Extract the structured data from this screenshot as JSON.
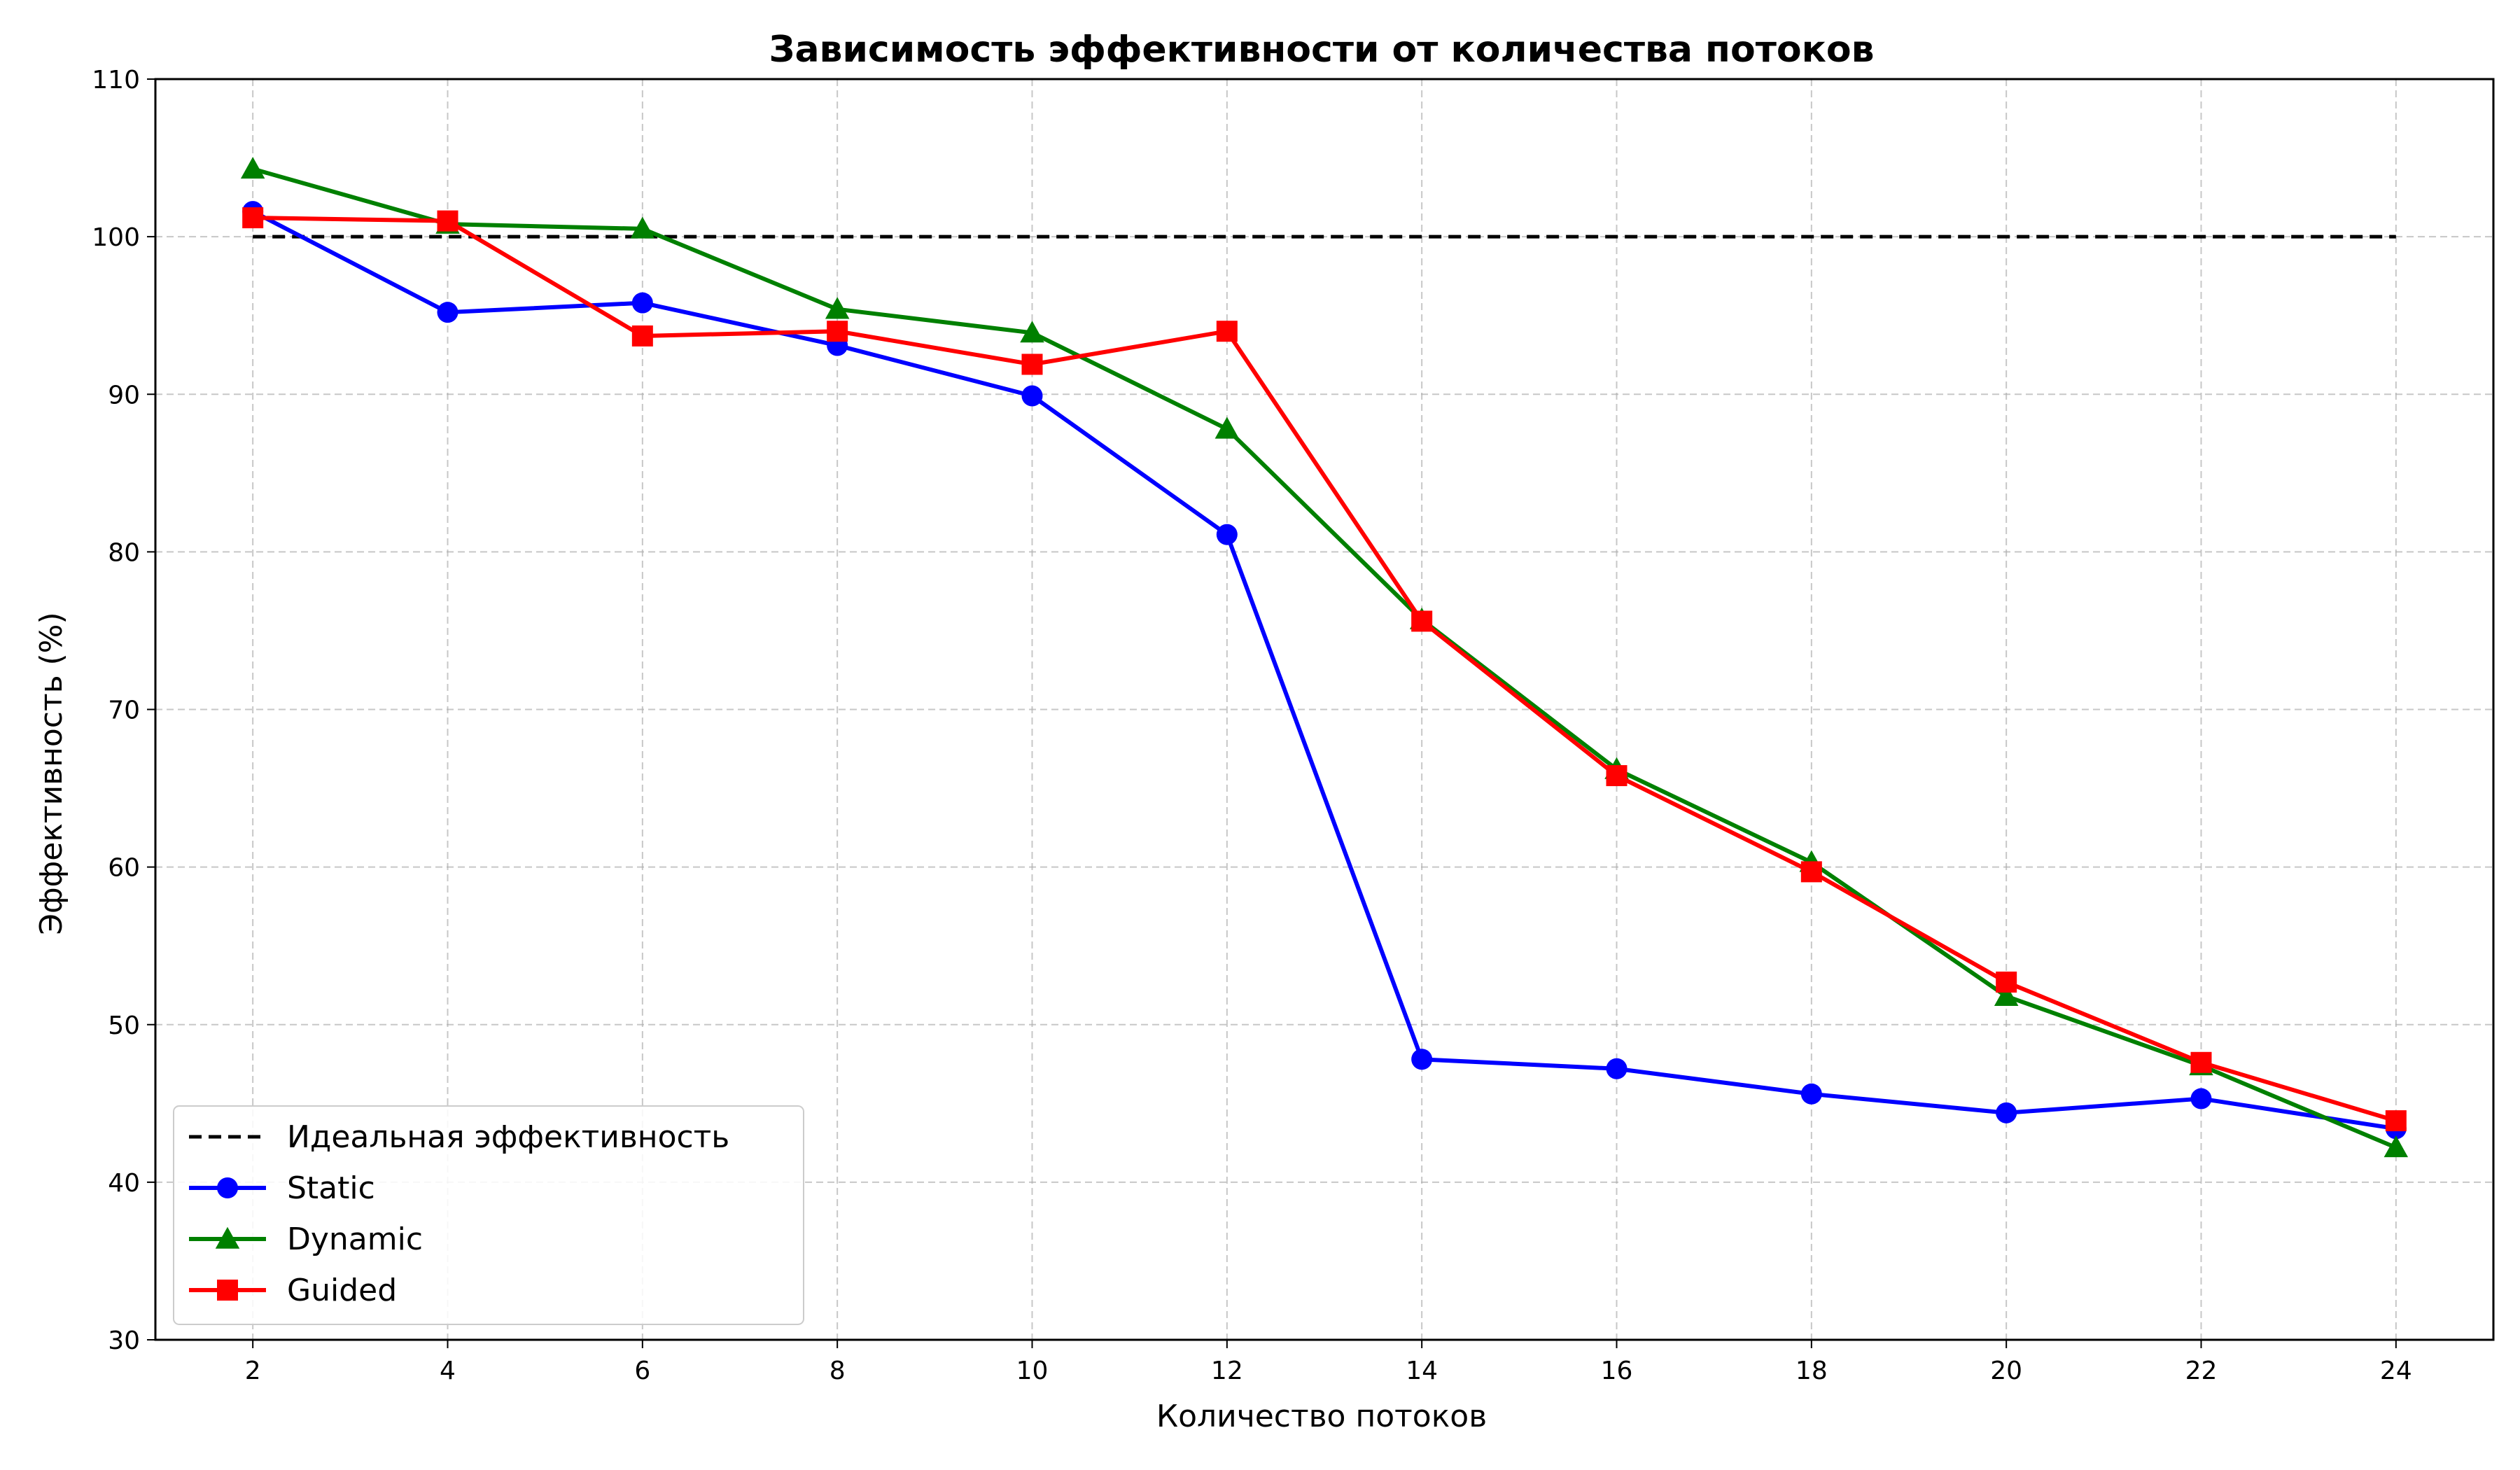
{
  "chart_data": {
    "type": "line",
    "title": "Зависимость эффективности от количества потоков",
    "xlabel": "Количество потоков",
    "ylabel": "Эффективность (%)",
    "xlim": [
      1,
      25
    ],
    "ylim": [
      30,
      110
    ],
    "xticks": [
      2,
      4,
      6,
      8,
      10,
      12,
      14,
      16,
      18,
      20,
      22,
      24
    ],
    "yticks": [
      30,
      40,
      50,
      60,
      70,
      80,
      90,
      100,
      110
    ],
    "grid": true,
    "legend_position": "lower-left",
    "x": [
      2,
      4,
      6,
      8,
      10,
      12,
      14,
      16,
      18,
      20,
      22,
      24
    ],
    "series": [
      {
        "name": "Идеальная эффективность",
        "color": "#000000",
        "style": "dashed",
        "marker": "none",
        "values": [
          100,
          100,
          100,
          100,
          100,
          100,
          100,
          100,
          100,
          100,
          100,
          100
        ]
      },
      {
        "name": "Static",
        "color": "#0000ff",
        "style": "solid",
        "marker": "circle",
        "values": [
          101.6,
          95.2,
          95.8,
          93.1,
          89.9,
          81.1,
          47.8,
          47.2,
          45.6,
          44.4,
          45.3,
          43.4
        ]
      },
      {
        "name": "Dynamic",
        "color": "#008000",
        "style": "solid",
        "marker": "triangle",
        "values": [
          104.3,
          100.8,
          100.5,
          95.4,
          93.9,
          87.8,
          75.7,
          66.2,
          60.3,
          51.8,
          47.4,
          42.2
        ]
      },
      {
        "name": "Guided",
        "color": "#ff0000",
        "style": "solid",
        "marker": "square",
        "values": [
          101.2,
          101.0,
          93.7,
          94.0,
          91.9,
          94.0,
          75.6,
          65.8,
          59.7,
          52.7,
          47.6,
          43.9
        ]
      }
    ]
  }
}
